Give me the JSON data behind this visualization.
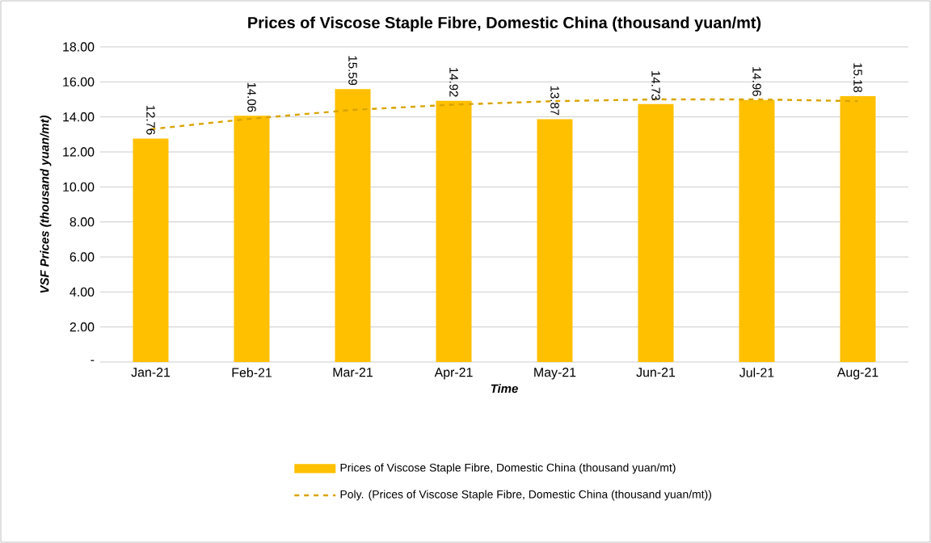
{
  "chart_data": {
    "type": "bar",
    "title": "Prices of Viscose Staple Fibre, Domestic China (thousand yuan/mt)",
    "xlabel": "Time",
    "ylabel": "VSF Prices (thousand yuan/mt)",
    "categories": [
      "Jan-21",
      "Feb-21",
      "Mar-21",
      "Apr-21",
      "May-21",
      "Jun-21",
      "Jul-21",
      "Aug-21"
    ],
    "series": [
      {
        "name": "Prices of Viscose Staple Fibre, Domestic China (thousand yuan/mt)",
        "color": "#ffc000",
        "values": [
          12.76,
          14.06,
          15.59,
          14.92,
          13.87,
          14.73,
          14.96,
          15.18
        ],
        "value_labels": [
          "12.76",
          "14.06",
          "15.59",
          "14.92",
          "13.87",
          "14.73",
          "14.96",
          "15.18"
        ]
      },
      {
        "name": "Poly. (Prices of Viscose Staple Fibre, Domestic China (thousand yuan/mt))",
        "type": "line",
        "line_style": "dashed",
        "color": "#d9a300",
        "values": [
          13.3,
          13.9,
          14.4,
          14.7,
          14.9,
          15.0,
          15.0,
          14.9
        ]
      }
    ],
    "ylim": [
      0,
      18
    ],
    "yticks": [
      {
        "value": 0,
        "label": "-"
      },
      {
        "value": 2,
        "label": "2.00"
      },
      {
        "value": 4,
        "label": "4.00"
      },
      {
        "value": 6,
        "label": "6.00"
      },
      {
        "value": 8,
        "label": "8.00"
      },
      {
        "value": 10,
        "label": "10.00"
      },
      {
        "value": 12,
        "label": "12.00"
      },
      {
        "value": 14,
        "label": "14.00"
      },
      {
        "value": 16,
        "label": "16.00"
      },
      {
        "value": 18,
        "label": "18.00"
      }
    ],
    "grid": "y",
    "legend": "bottom",
    "marker": "none"
  }
}
